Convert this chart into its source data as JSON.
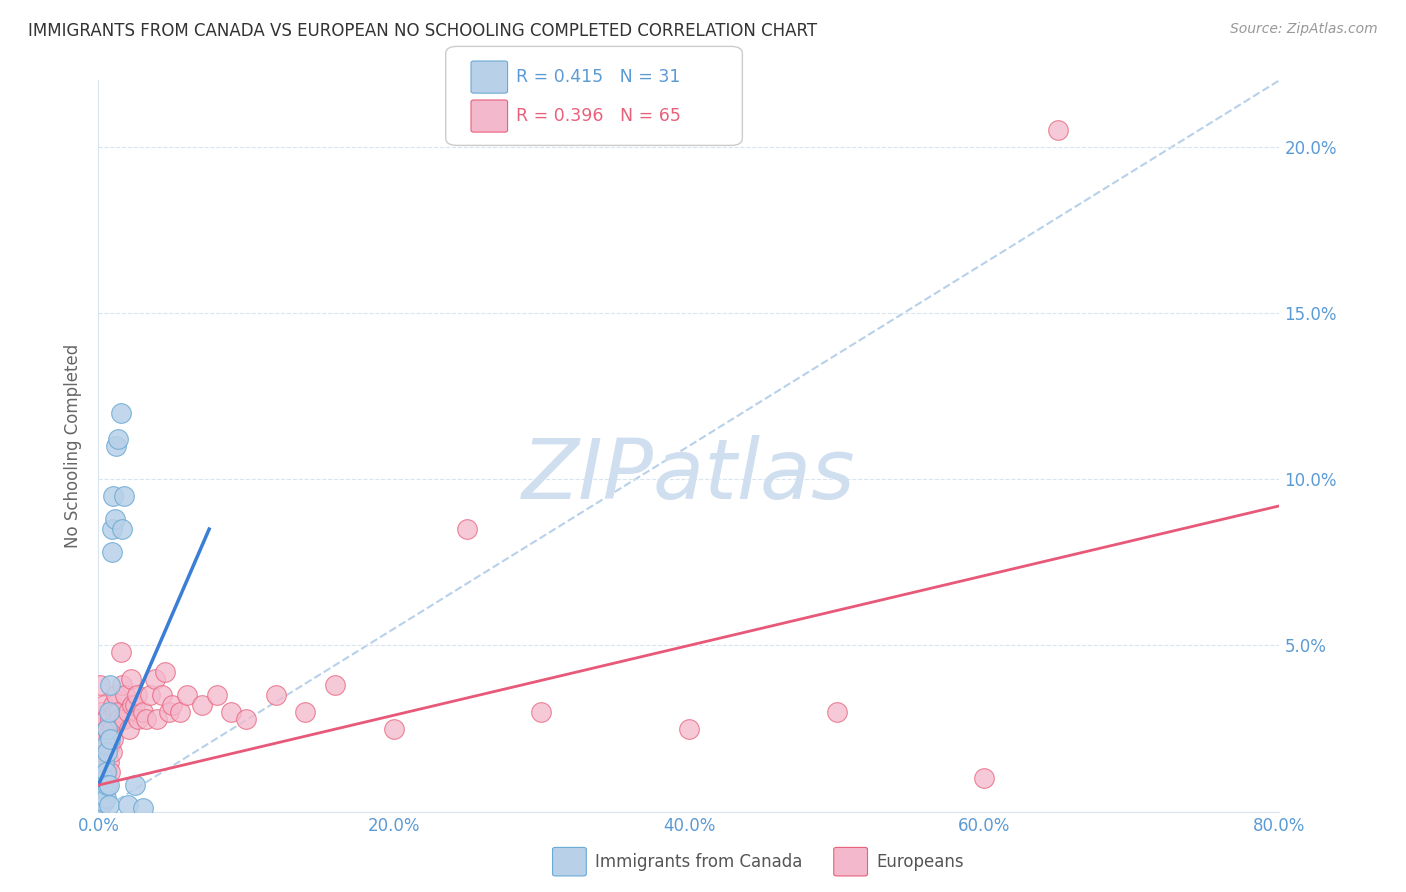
{
  "title": "IMMIGRANTS FROM CANADA VS EUROPEAN NO SCHOOLING COMPLETED CORRELATION CHART",
  "source": "Source: ZipAtlas.com",
  "ylabel": "No Schooling Completed",
  "xlim": [
    0,
    0.8
  ],
  "ylim": [
    0,
    0.22
  ],
  "xticks": [
    0.0,
    0.2,
    0.4,
    0.6,
    0.8
  ],
  "xtick_labels": [
    "0.0%",
    "20.0%",
    "40.0%",
    "60.0%",
    "80.0%"
  ],
  "yticks": [
    0.0,
    0.05,
    0.1,
    0.15,
    0.2
  ],
  "ytick_labels": [
    "",
    "5.0%",
    "10.0%",
    "15.0%",
    "20.0%"
  ],
  "canada_R": 0.415,
  "canada_N": 31,
  "europe_R": 0.396,
  "europe_N": 65,
  "canada_color": "#b8d0e8",
  "canada_edge_color": "#6aaad4",
  "europe_color": "#f4b8cc",
  "europe_edge_color": "#e8607a",
  "dashed_line_color": "#b0cce8",
  "background_color": "#ffffff",
  "grid_color": "#d8e4f0",
  "watermark_color": "#d0dff0",
  "tick_color": "#5b9bd5",
  "ylabel_color": "#666666",
  "title_color": "#333333",
  "source_color": "#999999",
  "canada_trend_color": "#3a7fd5",
  "europe_trend_color": "#e85878",
  "canada_points_x": [
    0.001,
    0.002,
    0.002,
    0.003,
    0.003,
    0.004,
    0.004,
    0.004,
    0.005,
    0.005,
    0.005,
    0.006,
    0.006,
    0.006,
    0.007,
    0.007,
    0.007,
    0.008,
    0.008,
    0.009,
    0.009,
    0.01,
    0.011,
    0.012,
    0.013,
    0.015,
    0.016,
    0.017,
    0.02,
    0.025,
    0.03
  ],
  "canada_points_y": [
    0.003,
    0.005,
    0.002,
    0.01,
    0.008,
    0.015,
    0.003,
    0.007,
    0.02,
    0.012,
    0.004,
    0.025,
    0.018,
    0.008,
    0.03,
    0.008,
    0.002,
    0.038,
    0.022,
    0.085,
    0.078,
    0.095,
    0.088,
    0.11,
    0.112,
    0.12,
    0.085,
    0.095,
    0.002,
    0.008,
    0.001
  ],
  "europe_points_x": [
    0.001,
    0.001,
    0.002,
    0.002,
    0.003,
    0.003,
    0.003,
    0.004,
    0.004,
    0.004,
    0.005,
    0.005,
    0.005,
    0.006,
    0.006,
    0.006,
    0.007,
    0.007,
    0.008,
    0.008,
    0.008,
    0.009,
    0.009,
    0.01,
    0.01,
    0.011,
    0.012,
    0.013,
    0.014,
    0.015,
    0.016,
    0.017,
    0.018,
    0.02,
    0.021,
    0.022,
    0.023,
    0.025,
    0.026,
    0.027,
    0.03,
    0.032,
    0.035,
    0.038,
    0.04,
    0.043,
    0.045,
    0.048,
    0.05,
    0.055,
    0.06,
    0.07,
    0.08,
    0.09,
    0.1,
    0.12,
    0.14,
    0.16,
    0.2,
    0.25,
    0.3,
    0.4,
    0.5,
    0.6,
    0.65
  ],
  "europe_points_y": [
    0.038,
    0.025,
    0.03,
    0.018,
    0.028,
    0.02,
    0.015,
    0.032,
    0.022,
    0.01,
    0.028,
    0.018,
    0.012,
    0.025,
    0.018,
    0.012,
    0.022,
    0.015,
    0.028,
    0.02,
    0.012,
    0.025,
    0.018,
    0.032,
    0.022,
    0.03,
    0.035,
    0.03,
    0.028,
    0.048,
    0.038,
    0.028,
    0.035,
    0.03,
    0.025,
    0.04,
    0.032,
    0.032,
    0.035,
    0.028,
    0.03,
    0.028,
    0.035,
    0.04,
    0.028,
    0.035,
    0.042,
    0.03,
    0.032,
    0.03,
    0.035,
    0.032,
    0.035,
    0.03,
    0.028,
    0.035,
    0.03,
    0.038,
    0.025,
    0.085,
    0.03,
    0.025,
    0.03,
    0.01,
    0.205
  ],
  "canada_trend_x": [
    0.0,
    0.075
  ],
  "canada_trend_y": [
    0.008,
    0.085
  ],
  "europe_trend_x": [
    0.0,
    0.8
  ],
  "europe_trend_y": [
    0.008,
    0.092
  ],
  "dashed_line_x": [
    0.0,
    0.8
  ],
  "dashed_line_y": [
    0.0,
    0.22
  ]
}
